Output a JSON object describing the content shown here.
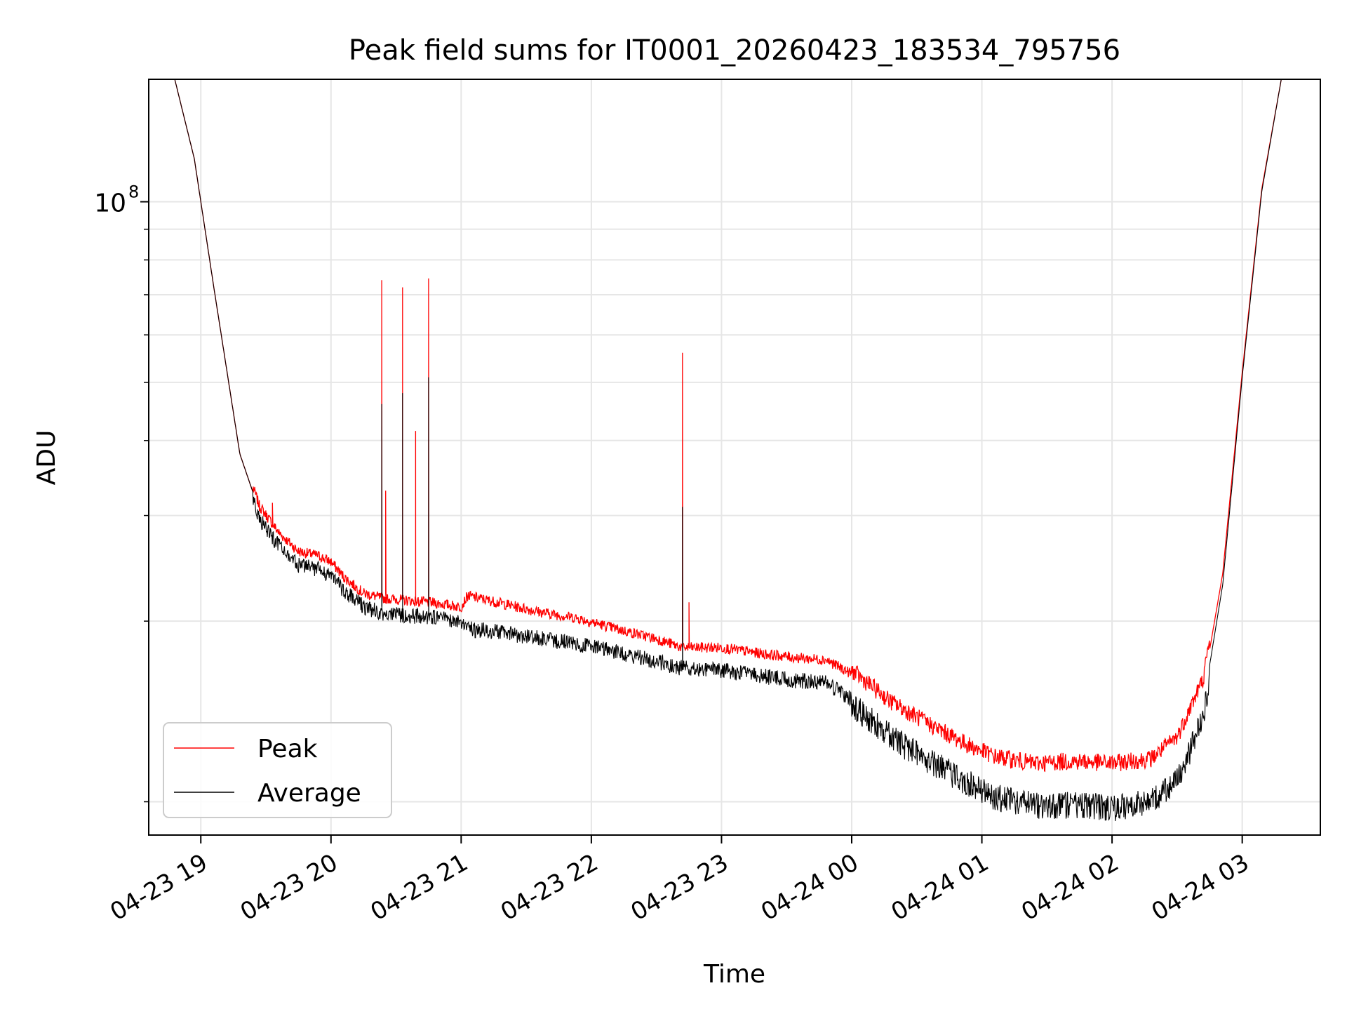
{
  "chart_data": {
    "type": "line",
    "title": "Peak field sums for IT0001_20260423_183534_795756",
    "xlabel": "Time",
    "ylabel": "ADU",
    "yscale": "log",
    "ylim": [
      8800000,
      160000000
    ],
    "xlim_hours": [
      18.6,
      27.6
    ],
    "grid": true,
    "legend_position": "lower-left",
    "x_tick_labels": [
      {
        "hour": 19,
        "label": "04-23 19"
      },
      {
        "hour": 20,
        "label": "04-23 20"
      },
      {
        "hour": 21,
        "label": "04-23 21"
      },
      {
        "hour": 22,
        "label": "04-23 22"
      },
      {
        "hour": 23,
        "label": "04-23 23"
      },
      {
        "hour": 24,
        "label": "04-24 00"
      },
      {
        "hour": 25,
        "label": "04-24 01"
      },
      {
        "hour": 26,
        "label": "04-24 02"
      },
      {
        "hour": 27,
        "label": "04-24 03"
      }
    ],
    "y_tick_label": {
      "value": 100000000,
      "base": "10",
      "exponent": "8"
    },
    "y_minor_ticks": [
      10000000,
      20000000,
      30000000,
      40000000,
      50000000,
      60000000,
      70000000,
      80000000,
      90000000,
      200000000
    ],
    "series": [
      {
        "name": "Peak",
        "color": "#ff0000",
        "base_points": [
          [
            18.8,
            160000000
          ],
          [
            18.95,
            118000000
          ],
          [
            19.1,
            72000000
          ],
          [
            19.3,
            38000000
          ],
          [
            19.45,
            30500000
          ],
          [
            19.6,
            27500000
          ],
          [
            19.75,
            25600000
          ],
          [
            19.9,
            25200000
          ],
          [
            20.0,
            24600000
          ],
          [
            20.1,
            23200000
          ],
          [
            20.25,
            21800000
          ],
          [
            20.4,
            21400000
          ],
          [
            20.6,
            21200000
          ],
          [
            20.8,
            21000000
          ],
          [
            21.0,
            20700000
          ],
          [
            21.05,
            21600000
          ],
          [
            21.3,
            21000000
          ],
          [
            21.6,
            20300000
          ],
          [
            21.9,
            19800000
          ],
          [
            22.2,
            19000000
          ],
          [
            22.5,
            18300000
          ],
          [
            22.7,
            17700000
          ],
          [
            23.0,
            17700000
          ],
          [
            23.3,
            17300000
          ],
          [
            23.6,
            17000000
          ],
          [
            23.8,
            16900000
          ],
          [
            24.0,
            16000000
          ],
          [
            24.3,
            14200000
          ],
          [
            24.6,
            13000000
          ],
          [
            24.9,
            12000000
          ],
          [
            25.1,
            11500000
          ],
          [
            25.4,
            11200000
          ],
          [
            25.7,
            11300000
          ],
          [
            26.0,
            11200000
          ],
          [
            26.3,
            11400000
          ],
          [
            26.5,
            12400000
          ],
          [
            26.7,
            15500000
          ],
          [
            26.85,
            24000000
          ],
          [
            27.0,
            52000000
          ],
          [
            27.15,
            105000000
          ],
          [
            27.3,
            160000000
          ]
        ],
        "spikes": [
          [
            20.39,
            74000000
          ],
          [
            20.42,
            33000000
          ],
          [
            20.55,
            72000000
          ],
          [
            20.65,
            41500000
          ],
          [
            20.75,
            74500000
          ],
          [
            22.7,
            56000000
          ],
          [
            22.75,
            21500000
          ],
          [
            19.45,
            31000000
          ],
          [
            19.55,
            31500000
          ],
          [
            19.85,
            26000000
          ]
        ]
      },
      {
        "name": "Average",
        "color": "#000000",
        "base_points": [
          [
            18.8,
            160000000
          ],
          [
            18.95,
            118000000
          ],
          [
            19.1,
            72000000
          ],
          [
            19.3,
            38000000
          ],
          [
            19.45,
            30500000
          ],
          [
            19.6,
            27500000
          ],
          [
            19.75,
            25600000
          ],
          [
            19.9,
            25200000
          ],
          [
            20.0,
            24600000
          ],
          [
            20.1,
            23200000
          ],
          [
            20.25,
            21800000
          ],
          [
            20.4,
            21300000
          ],
          [
            20.6,
            21100000
          ],
          [
            20.8,
            20900000
          ],
          [
            21.0,
            20600000
          ],
          [
            21.05,
            20000000
          ],
          [
            21.3,
            19800000
          ],
          [
            21.6,
            19300000
          ],
          [
            21.9,
            18900000
          ],
          [
            22.2,
            18300000
          ],
          [
            22.5,
            17700000
          ],
          [
            22.7,
            17200000
          ],
          [
            23.0,
            17100000
          ],
          [
            23.3,
            16700000
          ],
          [
            23.6,
            16400000
          ],
          [
            23.8,
            16300000
          ],
          [
            24.0,
            15300000
          ],
          [
            24.3,
            13500000
          ],
          [
            24.6,
            12300000
          ],
          [
            24.9,
            11300000
          ],
          [
            25.1,
            10700000
          ],
          [
            25.4,
            10400000
          ],
          [
            25.7,
            10400000
          ],
          [
            26.0,
            10300000
          ],
          [
            26.3,
            10500000
          ],
          [
            26.5,
            11400000
          ],
          [
            26.7,
            14500000
          ],
          [
            26.85,
            23000000
          ],
          [
            27.0,
            51000000
          ],
          [
            27.15,
            104000000
          ],
          [
            27.3,
            160000000
          ]
        ],
        "spikes": [
          [
            20.39,
            46000000
          ],
          [
            20.55,
            48000000
          ],
          [
            20.75,
            51000000
          ],
          [
            22.7,
            31000000
          ]
        ]
      }
    ]
  }
}
